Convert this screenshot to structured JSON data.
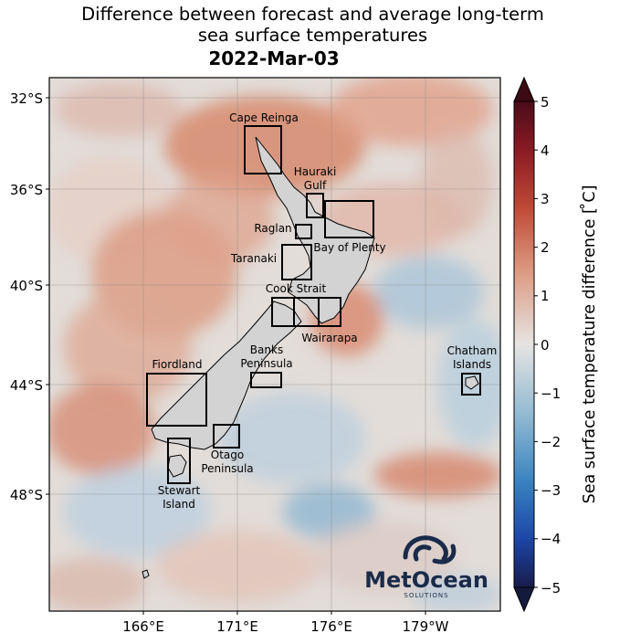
{
  "title": {
    "line1": "Difference between forecast and average long-term",
    "line2": "sea surface temperatures",
    "date": "2022-Mar-03"
  },
  "map": {
    "lat_ticks": [
      "32°S",
      "36°S",
      "40°S",
      "44°S",
      "48°S"
    ],
    "lon_ticks": [
      "166°E",
      "171°E",
      "176°E",
      "179°W"
    ],
    "regions": [
      {
        "label": "Cape Reinga"
      },
      {
        "label": "Hauraki"
      },
      {
        "label": "Gulf"
      },
      {
        "label": "Raglan"
      },
      {
        "label": "Bay of Plenty"
      },
      {
        "label": "Taranaki"
      },
      {
        "label": "Cook Strait"
      },
      {
        "label": "Wairarapa"
      },
      {
        "label": "Banks"
      },
      {
        "label": "Peninsula"
      },
      {
        "label": "Fiordland"
      },
      {
        "label": "Otago"
      },
      {
        "label": "Peninsula"
      },
      {
        "label": "Stewart"
      },
      {
        "label": "Island"
      },
      {
        "label": "Chatham"
      },
      {
        "label": "Islands"
      }
    ]
  },
  "colorbar": {
    "label": "Sea surface temperature difference [$^\\circ$C]",
    "label_display": "Sea surface temperature difference [ ̊C]",
    "ticks": [
      "5",
      "4",
      "3",
      "2",
      "1",
      "0",
      "−1",
      "−2",
      "−3",
      "−4",
      "−5"
    ],
    "range": [
      -5,
      5
    ],
    "colors": {
      "max": "#3b0a12",
      "warm": "#c0392b",
      "mid": "#dcdcdc",
      "cool": "#2f7fc1",
      "min": "#141a3c"
    }
  },
  "logo": {
    "name": "MetOcean",
    "sub": "SOLUTIONS",
    "icon": "metocean-wave-icon",
    "color": "#1a2b4a"
  }
}
